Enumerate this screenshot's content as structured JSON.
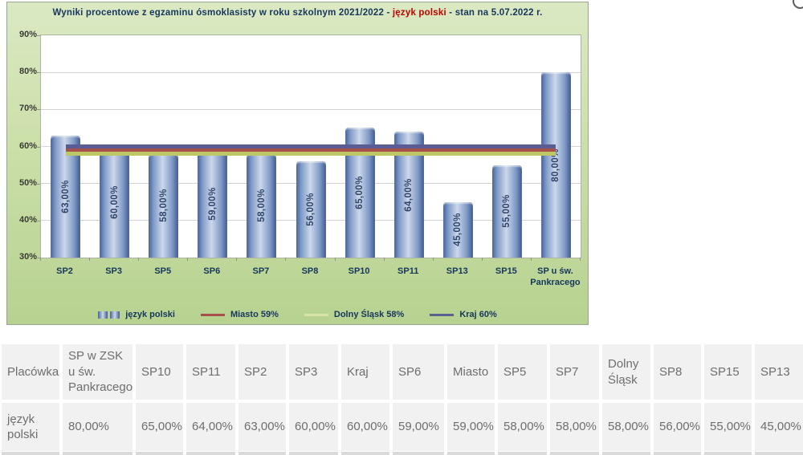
{
  "chart": {
    "title_part1": "Wyniki procentowe z egzaminu ósmoklasisty w roku szkolnym 2021/2022  - ",
    "title_highlight": "język polski",
    "title_part2": " - stan na 5.07.2022 r."
  },
  "chart_data": {
    "type": "bar",
    "title": "Wyniki procentowe z egzaminu ósmoklasisty w roku szkolnym 2021/2022 - język polski - stan na 5.07.2022 r.",
    "series_name": "język polski",
    "categories": [
      "SP2",
      "SP3",
      "SP5",
      "SP6",
      "SP7",
      "SP8",
      "SP10",
      "SP11",
      "SP13",
      "SP15",
      "SP u św. Pankracego"
    ],
    "values": [
      63,
      60,
      58,
      59,
      58,
      56,
      65,
      64,
      45,
      55,
      80
    ],
    "bar_labels": [
      "63,00%",
      "60,00%",
      "58,00%",
      "59,00%",
      "58,00%",
      "56,00%",
      "65,00%",
      "64,00%",
      "45,00%",
      "55,00%",
      "80,00%"
    ],
    "ylim": [
      30,
      90
    ],
    "yticks": [
      "90%",
      "80%",
      "70%",
      "60%",
      "50%",
      "40%",
      "30%"
    ],
    "grid": true,
    "legend_position": "bottom",
    "reference_lines": [
      {
        "name": "Kraj 60%",
        "value": 60,
        "color": "#5c5c94"
      },
      {
        "name": "Miasto 59%",
        "value": 59,
        "color": "#a6504b"
      },
      {
        "name": "Dolny Śląsk 58%",
        "value": 58,
        "color": "#bdc765"
      }
    ],
    "legend": [
      {
        "label": "język polski",
        "swatch": "bar",
        "color": "#7d98c4"
      },
      {
        "label": "Miasto 59%",
        "swatch": "line",
        "color": "#a6504b"
      },
      {
        "label": "Dolny Śląsk 58%",
        "swatch": "line",
        "color": "#d9e3a8"
      },
      {
        "label": "Kraj 60%",
        "swatch": "line",
        "color": "#5c6290"
      }
    ],
    "colors": {
      "panel_background": "#c8dda6",
      "bar_edge": "#46629a",
      "bar_center": "#ccd7ea",
      "title_text": "#17365d",
      "title_highlight": "#c00000"
    }
  },
  "table": {
    "headers": [
      "Placówka",
      "SP w ZSK u św. Pankracego",
      "SP10",
      "SP11",
      "SP2",
      "SP3",
      "Kraj",
      "SP6",
      "Miasto",
      "SP5",
      "SP7",
      "Dolny Śląsk",
      "SP8",
      "SP15",
      "SP13"
    ],
    "rows": [
      [
        "język polski",
        "80,00%",
        "65,00%",
        "64,00%",
        "63,00%",
        "60,00%",
        "60,00%",
        "59,00%",
        "59,00%",
        "58,00%",
        "58,00%",
        "58,00%",
        "56,00%",
        "55,00%",
        "45,00%"
      ]
    ]
  }
}
